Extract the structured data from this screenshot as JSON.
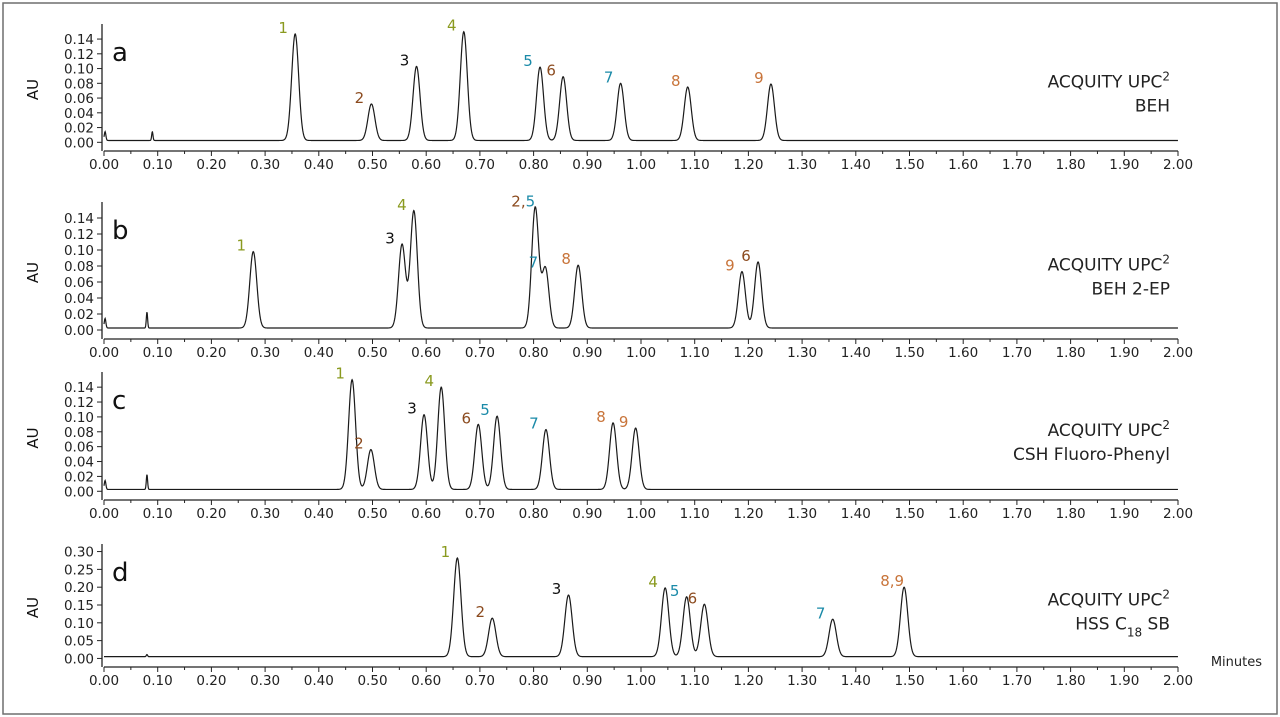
{
  "chart_data": [
    {
      "type": "line",
      "panel_label": "a",
      "column_line1": "ACQUITY UPC",
      "column_line1_sup": "2",
      "column_line2": "BEH",
      "column_line2_sub": "",
      "column_line2_tail": "",
      "ylabel": "AU",
      "xlabel": "",
      "xlim": [
        0,
        2.0
      ],
      "ylim": [
        -0.005,
        0.155
      ],
      "yticks": [
        "0.00",
        "0.02",
        "0.04",
        "0.06",
        "0.08",
        "0.10",
        "0.12",
        "0.14"
      ],
      "yticks_values": [
        0,
        0.02,
        0.04,
        0.06,
        0.08,
        0.1,
        0.12,
        0.14
      ],
      "xticks": [
        "0.00",
        "0.10",
        "0.20",
        "0.30",
        "0.40",
        "0.50",
        "0.60",
        "0.70",
        "0.80",
        "0.90",
        "1.00",
        "1.10",
        "1.20",
        "1.30",
        "1.40",
        "1.50",
        "1.60",
        "1.70",
        "1.80",
        "1.90",
        "2.00"
      ],
      "baseline": 0.0025,
      "peaks": [
        {
          "label": "1",
          "rt": 0.356,
          "height": 0.147,
          "color": "#8a9a1f"
        },
        {
          "label": "2",
          "rt": 0.498,
          "height": 0.052,
          "color": "#8b4a1e"
        },
        {
          "label": "3",
          "rt": 0.582,
          "height": 0.103,
          "color": "#111111"
        },
        {
          "label": "4",
          "rt": 0.67,
          "height": 0.15,
          "color": "#8a9a1f"
        },
        {
          "label": "5",
          "rt": 0.812,
          "height": 0.102,
          "color": "#1a8aa8"
        },
        {
          "label": "6",
          "rt": 0.855,
          "height": 0.089,
          "color": "#8b4a1e"
        },
        {
          "label": "7",
          "rt": 0.962,
          "height": 0.08,
          "color": "#1a8aa8"
        },
        {
          "label": "8",
          "rt": 1.087,
          "height": 0.075,
          "color": "#c8743a"
        },
        {
          "label": "9",
          "rt": 1.242,
          "height": 0.079,
          "color": "#c8743a"
        }
      ]
    },
    {
      "type": "line",
      "panel_label": "b",
      "column_line1": "ACQUITY UPC",
      "column_line1_sup": "2",
      "column_line2": "BEH 2-EP",
      "column_line2_sub": "",
      "column_line2_tail": "",
      "ylabel": "AU",
      "xlabel": "",
      "xlim": [
        0,
        2.0
      ],
      "ylim": [
        -0.005,
        0.155
      ],
      "yticks": [
        "0.00",
        "0.02",
        "0.04",
        "0.06",
        "0.08",
        "0.10",
        "0.12",
        "0.14"
      ],
      "yticks_values": [
        0,
        0.02,
        0.04,
        0.06,
        0.08,
        0.1,
        0.12,
        0.14
      ],
      "xticks": [
        "0.00",
        "0.10",
        "0.20",
        "0.30",
        "0.40",
        "0.50",
        "0.60",
        "0.70",
        "0.80",
        "0.90",
        "1.00",
        "1.10",
        "1.20",
        "1.30",
        "1.40",
        "1.50",
        "1.60",
        "1.70",
        "1.80",
        "1.90",
        "2.00"
      ],
      "baseline": 0.0025,
      "peaks": [
        {
          "label": "1",
          "rt": 0.278,
          "height": 0.098,
          "color": "#8a9a1f"
        },
        {
          "label": "3",
          "rt": 0.555,
          "height": 0.107,
          "color": "#111111"
        },
        {
          "label": "4",
          "rt": 0.577,
          "height": 0.149,
          "color": "#8a9a1f"
        },
        {
          "label": "2,5",
          "rt": 0.803,
          "height": 0.153,
          "color": "#8b4a1e"
        },
        {
          "label": "7",
          "rt": 0.822,
          "height": 0.077,
          "color": "#1a8aa8"
        },
        {
          "label": "8",
          "rt": 0.883,
          "height": 0.081,
          "color": "#c8743a"
        },
        {
          "label": "9",
          "rt": 1.188,
          "height": 0.073,
          "color": "#c8743a"
        },
        {
          "label": "6",
          "rt": 1.218,
          "height": 0.085,
          "color": "#8b4a1e"
        }
      ]
    },
    {
      "type": "line",
      "panel_label": "c",
      "column_line1": "ACQUITY UPC",
      "column_line1_sup": "2",
      "column_line2": "CSH Fluoro-Phenyl",
      "column_line2_sub": "",
      "column_line2_tail": "",
      "ylabel": "AU",
      "xlabel": "",
      "xlim": [
        0,
        2.0
      ],
      "ylim": [
        -0.005,
        0.155
      ],
      "yticks": [
        "0.00",
        "0.02",
        "0.04",
        "0.06",
        "0.08",
        "0.10",
        "0.12",
        "0.14"
      ],
      "yticks_values": [
        0,
        0.02,
        0.04,
        0.06,
        0.08,
        0.1,
        0.12,
        0.14
      ],
      "xticks": [
        "0.00",
        "0.10",
        "0.20",
        "0.30",
        "0.40",
        "0.50",
        "0.60",
        "0.70",
        "0.80",
        "0.90",
        "1.00",
        "1.10",
        "1.20",
        "1.30",
        "1.40",
        "1.50",
        "1.60",
        "1.70",
        "1.80",
        "1.90",
        "2.00"
      ],
      "baseline": 0.0025,
      "peaks": [
        {
          "label": "1",
          "rt": 0.462,
          "height": 0.15,
          "color": "#8a9a1f"
        },
        {
          "label": "2",
          "rt": 0.497,
          "height": 0.056,
          "color": "#8b4a1e"
        },
        {
          "label": "3",
          "rt": 0.596,
          "height": 0.103,
          "color": "#111111"
        },
        {
          "label": "4",
          "rt": 0.628,
          "height": 0.14,
          "color": "#8a9a1f"
        },
        {
          "label": "6",
          "rt": 0.697,
          "height": 0.09,
          "color": "#8b4a1e"
        },
        {
          "label": "5",
          "rt": 0.732,
          "height": 0.101,
          "color": "#1a8aa8"
        },
        {
          "label": "7",
          "rt": 0.823,
          "height": 0.083,
          "color": "#1a8aa8"
        },
        {
          "label": "8",
          "rt": 0.948,
          "height": 0.092,
          "color": "#c8743a"
        },
        {
          "label": "9",
          "rt": 0.99,
          "height": 0.085,
          "color": "#c8743a"
        }
      ]
    },
    {
      "type": "line",
      "panel_label": "d",
      "column_line1": "ACQUITY UPC",
      "column_line1_sup": "2",
      "column_line2": "HSS C",
      "column_line2_sub": "18",
      "column_line2_tail": " SB",
      "ylabel": "AU",
      "xlabel": "Minutes",
      "xlim": [
        0,
        2.0
      ],
      "ylim": [
        -0.01,
        0.31
      ],
      "yticks": [
        "0.00",
        "0.05",
        "0.10",
        "0.15",
        "0.20",
        "0.25",
        "0.30"
      ],
      "yticks_values": [
        0,
        0.05,
        0.1,
        0.15,
        0.2,
        0.25,
        0.3
      ],
      "xticks": [
        "0.00",
        "0.10",
        "0.20",
        "0.30",
        "0.40",
        "0.50",
        "0.60",
        "0.70",
        "0.80",
        "0.90",
        "1.00",
        "1.10",
        "1.20",
        "1.30",
        "1.40",
        "1.50",
        "1.60",
        "1.70",
        "1.80",
        "1.90",
        "2.00"
      ],
      "baseline": 0.005,
      "peaks": [
        {
          "label": "1",
          "rt": 0.658,
          "height": 0.282,
          "color": "#8a9a1f"
        },
        {
          "label": "2",
          "rt": 0.723,
          "height": 0.113,
          "color": "#8b4a1e"
        },
        {
          "label": "3",
          "rt": 0.865,
          "height": 0.178,
          "color": "#111111"
        },
        {
          "label": "4",
          "rt": 1.045,
          "height": 0.198,
          "color": "#8a9a1f"
        },
        {
          "label": "5",
          "rt": 1.085,
          "height": 0.173,
          "color": "#1a8aa8"
        },
        {
          "label": "6",
          "rt": 1.118,
          "height": 0.152,
          "color": "#8b4a1e"
        },
        {
          "label": "7",
          "rt": 1.357,
          "height": 0.11,
          "color": "#1a8aa8"
        },
        {
          "label": "8,9",
          "rt": 1.49,
          "height": 0.2,
          "color": "#c8743a"
        }
      ]
    }
  ]
}
